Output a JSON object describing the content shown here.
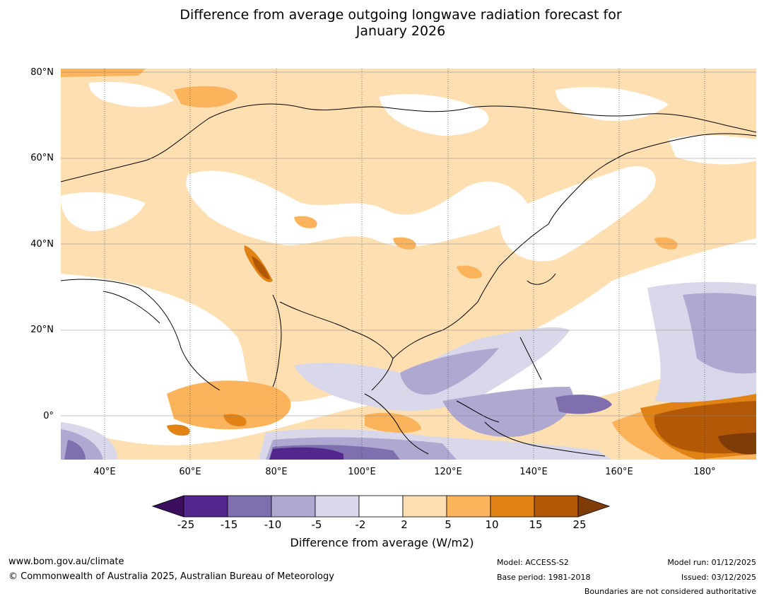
{
  "title_line1": "Difference from average outgoing longwave radiation forecast for",
  "title_line2": "January 2026",
  "lat_labels": [
    "80°N",
    "60°N",
    "40°N",
    "20°N",
    "0°"
  ],
  "lon_labels": [
    "40°E",
    "60°E",
    "80°E",
    "100°E",
    "120°E",
    "140°E",
    "160°E",
    "180°"
  ],
  "colorbar": {
    "title": "Difference from average (W/m2)",
    "ticks": [
      "-25",
      "-15",
      "-10",
      "-5",
      "-2",
      "2",
      "5",
      "10",
      "15",
      "25"
    ],
    "colors": [
      "#3b0f5e",
      "#54278f",
      "#7f6fae",
      "#afa8d1",
      "#d9d8eb",
      "#ffffff",
      "#fddfb2",
      "#fbb35c",
      "#e08214",
      "#b35806",
      "#7f3b08"
    ]
  },
  "footer": {
    "url": "www.bom.gov.au/climate",
    "copyright": "© Commonwealth of Australia 2025, Australian Bureau of Meteorology",
    "model": "Model: ACCESS-S2",
    "base_period": "Base period: 1981-2018",
    "model_run": "Model run: 01/12/2025",
    "issued": "Issued: 03/12/2025",
    "disclaimer": "Boundaries are not considered authoritative"
  }
}
